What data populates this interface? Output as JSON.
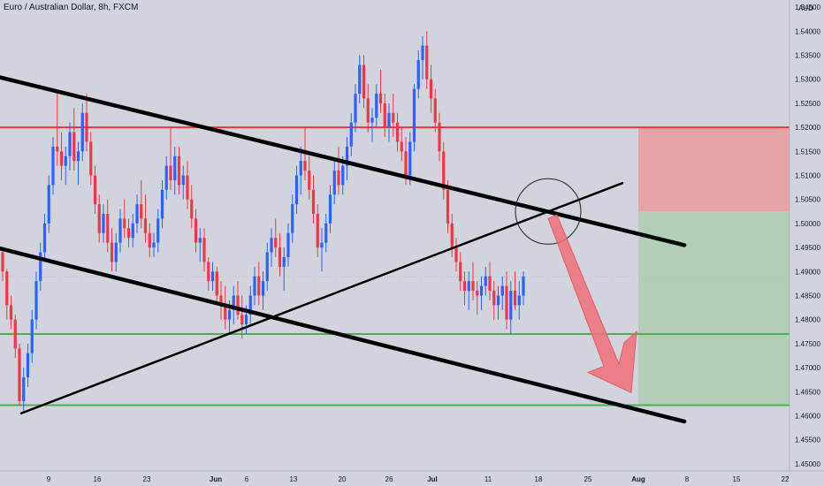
{
  "header": {
    "symbol_title": "Euro / Australian Dollar, 8h, FXCM"
  },
  "chart_data": {
    "type": "candlestick",
    "title": "Euro / Australian Dollar, 8h, FXCM",
    "currency_label": "AUD",
    "y_ticks": [
      "1.54500",
      "1.54000",
      "1.53500",
      "1.53000",
      "1.52500",
      "1.52000",
      "1.51500",
      "1.51000",
      "1.50500",
      "1.50000",
      "1.49500",
      "1.49000",
      "1.48500",
      "1.48000",
      "1.47500",
      "1.47000",
      "1.46500",
      "1.46000",
      "1.45500",
      "1.45000"
    ],
    "ylim": [
      1.4485,
      1.5465
    ],
    "x_ticks": [
      "9",
      "16",
      "23",
      "Jun",
      "6",
      "13",
      "20",
      "26",
      "Jul",
      "11",
      "18",
      "25",
      "Aug",
      "8",
      "15",
      "22"
    ],
    "colors": {
      "up": "#2962ff",
      "down": "#f23645",
      "background": "#d1d4dc",
      "resistance": "#e8383d",
      "support": "#4caf50",
      "trendline": "#000000",
      "loss_zone": "#e6a3a8",
      "profit_zone": "#b0cfb6",
      "arrow": "#f0707a"
    },
    "horizontal_levels": [
      {
        "name": "resistance",
        "value": 1.52
      },
      {
        "name": "support-upper",
        "value": 1.477
      },
      {
        "name": "support-lower",
        "value": 1.4622
      }
    ],
    "candles": [
      [
        1.494,
        1.4945,
        1.488,
        1.49
      ],
      [
        1.49,
        1.4905,
        1.48,
        1.483
      ],
      [
        1.483,
        1.485,
        1.478,
        1.48
      ],
      [
        1.48,
        1.481,
        1.472,
        1.474
      ],
      [
        1.474,
        1.475,
        1.462,
        1.463
      ],
      [
        1.463,
        1.47,
        1.4605,
        1.468
      ],
      [
        1.468,
        1.475,
        1.466,
        1.473
      ],
      [
        1.473,
        1.482,
        1.471,
        1.48
      ],
      [
        1.48,
        1.49,
        1.478,
        1.488
      ],
      [
        1.488,
        1.496,
        1.486,
        1.494
      ],
      [
        1.494,
        1.502,
        1.492,
        1.5
      ],
      [
        1.5,
        1.51,
        1.498,
        1.508
      ],
      [
        1.508,
        1.518,
        1.506,
        1.516
      ],
      [
        1.516,
        1.527,
        1.512,
        1.515
      ],
      [
        1.515,
        1.519,
        1.509,
        1.512
      ],
      [
        1.512,
        1.516,
        1.508,
        1.514
      ],
      [
        1.514,
        1.521,
        1.511,
        1.519
      ],
      [
        1.519,
        1.524,
        1.511,
        1.513
      ],
      [
        1.513,
        1.517,
        1.508,
        1.515
      ],
      [
        1.515,
        1.525,
        1.513,
        1.523
      ],
      [
        1.523,
        1.527,
        1.515,
        1.517
      ],
      [
        1.517,
        1.519,
        1.508,
        1.51
      ],
      [
        1.51,
        1.512,
        1.502,
        1.504
      ],
      [
        1.504,
        1.506,
        1.496,
        1.498
      ],
      [
        1.498,
        1.504,
        1.496,
        1.502
      ],
      [
        1.502,
        1.505,
        1.494,
        1.496
      ],
      [
        1.496,
        1.499,
        1.49,
        1.492
      ],
      [
        1.492,
        1.498,
        1.49,
        1.496
      ],
      [
        1.496,
        1.503,
        1.494,
        1.501
      ],
      [
        1.501,
        1.505,
        1.497,
        1.499
      ],
      [
        1.499,
        1.501,
        1.495,
        1.497
      ],
      [
        1.497,
        1.502,
        1.495,
        1.5
      ],
      [
        1.5,
        1.506,
        1.498,
        1.504
      ],
      [
        1.504,
        1.509,
        1.499,
        1.501
      ],
      [
        1.501,
        1.506,
        1.496,
        1.498
      ],
      [
        1.498,
        1.5,
        1.493,
        1.495
      ],
      [
        1.495,
        1.498,
        1.493,
        1.496
      ],
      [
        1.496,
        1.503,
        1.494,
        1.501
      ],
      [
        1.501,
        1.509,
        1.499,
        1.507
      ],
      [
        1.507,
        1.514,
        1.505,
        1.512
      ],
      [
        1.512,
        1.52,
        1.507,
        1.509
      ],
      [
        1.509,
        1.516,
        1.506,
        1.514
      ],
      [
        1.514,
        1.516,
        1.506,
        1.508
      ],
      [
        1.508,
        1.512,
        1.505,
        1.51
      ],
      [
        1.51,
        1.513,
        1.503,
        1.505
      ],
      [
        1.505,
        1.508,
        1.499,
        1.501
      ],
      [
        1.501,
        1.503,
        1.494,
        1.496
      ],
      [
        1.496,
        1.499,
        1.492,
        1.497
      ],
      [
        1.497,
        1.499,
        1.49,
        1.492
      ],
      [
        1.492,
        1.493,
        1.486,
        1.488
      ],
      [
        1.488,
        1.492,
        1.486,
        1.49
      ],
      [
        1.49,
        1.491,
        1.483,
        1.485
      ],
      [
        1.485,
        1.488,
        1.48,
        1.483
      ],
      [
        1.483,
        1.487,
        1.478,
        1.48
      ],
      [
        1.48,
        1.484,
        1.477,
        1.482
      ],
      [
        1.482,
        1.487,
        1.479,
        1.485
      ],
      [
        1.485,
        1.488,
        1.48,
        1.481
      ],
      [
        1.481,
        1.485,
        1.476,
        1.479
      ],
      [
        1.479,
        1.483,
        1.477,
        1.481
      ],
      [
        1.481,
        1.487,
        1.479,
        1.485
      ],
      [
        1.485,
        1.491,
        1.483,
        1.489
      ],
      [
        1.489,
        1.492,
        1.483,
        1.485
      ],
      [
        1.485,
        1.49,
        1.482,
        1.488
      ],
      [
        1.488,
        1.496,
        1.486,
        1.494
      ],
      [
        1.494,
        1.499,
        1.491,
        1.497
      ],
      [
        1.497,
        1.501,
        1.493,
        1.495
      ],
      [
        1.495,
        1.498,
        1.489,
        1.491
      ],
      [
        1.491,
        1.495,
        1.486,
        1.493
      ],
      [
        1.493,
        1.5,
        1.491,
        1.498
      ],
      [
        1.498,
        1.506,
        1.496,
        1.504
      ],
      [
        1.504,
        1.512,
        1.502,
        1.51
      ],
      [
        1.51,
        1.516,
        1.506,
        1.513
      ],
      [
        1.513,
        1.52,
        1.509,
        1.511
      ],
      [
        1.511,
        1.514,
        1.505,
        1.507
      ],
      [
        1.507,
        1.51,
        1.5,
        1.502
      ],
      [
        1.502,
        1.504,
        1.493,
        1.495
      ],
      [
        1.495,
        1.499,
        1.49,
        1.496
      ],
      [
        1.496,
        1.502,
        1.494,
        1.5
      ],
      [
        1.5,
        1.508,
        1.498,
        1.506
      ],
      [
        1.506,
        1.513,
        1.504,
        1.511
      ],
      [
        1.511,
        1.516,
        1.506,
        1.508
      ],
      [
        1.508,
        1.514,
        1.506,
        1.512
      ],
      [
        1.512,
        1.518,
        1.509,
        1.516
      ],
      [
        1.516,
        1.523,
        1.514,
        1.521
      ],
      [
        1.521,
        1.529,
        1.519,
        1.527
      ],
      [
        1.527,
        1.535,
        1.525,
        1.533
      ],
      [
        1.533,
        1.535,
        1.524,
        1.526
      ],
      [
        1.526,
        1.529,
        1.519,
        1.521
      ],
      [
        1.521,
        1.524,
        1.517,
        1.522
      ],
      [
        1.522,
        1.529,
        1.52,
        1.527
      ],
      [
        1.527,
        1.532,
        1.523,
        1.525
      ],
      [
        1.525,
        1.527,
        1.518,
        1.52
      ],
      [
        1.52,
        1.525,
        1.517,
        1.523
      ],
      [
        1.523,
        1.527,
        1.518,
        1.521
      ],
      [
        1.521,
        1.523,
        1.515,
        1.517
      ],
      [
        1.517,
        1.52,
        1.513,
        1.515
      ],
      [
        1.515,
        1.518,
        1.508,
        1.51
      ],
      [
        1.51,
        1.519,
        1.508,
        1.517
      ],
      [
        1.517,
        1.529,
        1.515,
        1.528
      ],
      [
        1.528,
        1.536,
        1.526,
        1.534
      ],
      [
        1.534,
        1.539,
        1.53,
        1.537
      ],
      [
        1.537,
        1.54,
        1.528,
        1.53
      ],
      [
        1.53,
        1.533,
        1.523,
        1.526
      ],
      [
        1.526,
        1.528,
        1.519,
        1.521
      ],
      [
        1.521,
        1.523,
        1.513,
        1.515
      ],
      [
        1.515,
        1.517,
        1.505,
        1.507
      ],
      [
        1.507,
        1.509,
        1.498,
        1.5
      ],
      [
        1.5,
        1.502,
        1.493,
        1.495
      ],
      [
        1.495,
        1.497,
        1.49,
        1.492
      ],
      [
        1.492,
        1.494,
        1.486,
        1.488
      ],
      [
        1.488,
        1.49,
        1.483,
        1.486
      ],
      [
        1.486,
        1.49,
        1.482,
        1.488
      ],
      [
        1.488,
        1.492,
        1.484,
        1.486
      ],
      [
        1.486,
        1.488,
        1.481,
        1.485
      ],
      [
        1.485,
        1.489,
        1.482,
        1.487
      ],
      [
        1.487,
        1.491,
        1.485,
        1.489
      ],
      [
        1.489,
        1.492,
        1.484,
        1.486
      ],
      [
        1.486,
        1.488,
        1.48,
        1.483
      ],
      [
        1.483,
        1.487,
        1.48,
        1.485
      ],
      [
        1.485,
        1.489,
        1.482,
        1.487
      ],
      [
        1.487,
        1.49,
        1.478,
        1.48
      ],
      [
        1.48,
        1.488,
        1.477,
        1.486
      ],
      [
        1.486,
        1.49,
        1.482,
        1.483
      ],
      [
        1.483,
        1.488,
        1.48,
        1.485
      ],
      [
        1.485,
        1.49,
        1.483,
        1.489
      ]
    ],
    "trendlines": [
      {
        "name": "channel-upper",
        "points": [
          [
            0,
            1.5304
          ],
          [
            774,
            1.4955
          ]
        ]
      },
      {
        "name": "channel-lower",
        "points": [
          [
            0,
            1.4948
          ],
          [
            774,
            1.4588
          ]
        ]
      },
      {
        "name": "rising-trendline",
        "points": [
          [
            24,
            1.4605
          ],
          [
            704,
            1.5084
          ]
        ]
      }
    ],
    "trade_zones": [
      {
        "name": "stop-loss-zone",
        "from": 1.52,
        "to": 1.5025
      },
      {
        "name": "take-profit-zone",
        "from": 1.5025,
        "to": 1.4622
      }
    ],
    "annotations": [
      {
        "name": "intersection-circle",
        "center": [
          "Jul 18",
          1.5025
        ]
      },
      {
        "name": "bearish-projection-arrow",
        "from": [
          "Jul 18",
          1.5025
        ],
        "to": [
          "Jul 25",
          1.4645
        ]
      }
    ]
  }
}
